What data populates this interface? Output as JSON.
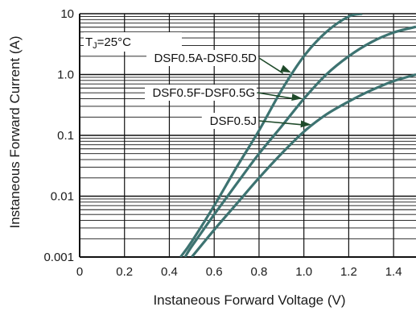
{
  "chart_data": {
    "type": "line",
    "title": "",
    "xlabel": "Instaneous Forward Voltage (V)",
    "ylabel": "Instaneous Forward Current (A)",
    "xlim": [
      0,
      1.5
    ],
    "ylim": [
      0.001,
      10
    ],
    "yscale": "log",
    "xticks": [
      "0",
      "0.2",
      "0.4",
      "0.6",
      "0.8",
      "1.0",
      "1.2",
      "1.4"
    ],
    "yticks": [
      "0.001",
      "0.01",
      "0.1",
      "1.0",
      "10"
    ],
    "grid": true,
    "condition": {
      "prefix": "T",
      "sub": "J",
      "suffix": "=25°C"
    },
    "series": [
      {
        "name": "DSF0.5A-DSF0.5D",
        "x": [
          0.45,
          0.5,
          0.6,
          0.7,
          0.8,
          0.9,
          1.0,
          1.1,
          1.2,
          1.26
        ],
        "y": [
          0.001,
          0.0018,
          0.007,
          0.03,
          0.12,
          0.55,
          2.0,
          5.0,
          9.0,
          10
        ]
      },
      {
        "name": "DSF0.5F-DSF0.5G",
        "x": [
          0.47,
          0.5,
          0.6,
          0.7,
          0.8,
          0.9,
          1.0,
          1.1,
          1.2,
          1.3,
          1.4,
          1.5
        ],
        "y": [
          0.001,
          0.0015,
          0.005,
          0.016,
          0.05,
          0.14,
          0.4,
          1.0,
          2.0,
          3.4,
          4.9,
          6.1
        ]
      },
      {
        "name": "DSF0.5J",
        "x": [
          0.5,
          0.6,
          0.7,
          0.8,
          0.9,
          1.0,
          1.1,
          1.2,
          1.3,
          1.4,
          1.5
        ],
        "y": [
          0.001,
          0.0028,
          0.0075,
          0.02,
          0.05,
          0.115,
          0.22,
          0.36,
          0.55,
          0.78,
          1.0
        ]
      }
    ],
    "annotations": [
      {
        "text": "DSF0.5A-DSF0.5D",
        "series": 0,
        "arrow_to_x": 0.95
      },
      {
        "text": "DSF0.5F-DSF0.5G",
        "series": 1,
        "arrow_to_x": 1.0
      },
      {
        "text": "DSF0.5J",
        "series": 2,
        "arrow_to_x": 1.04
      }
    ],
    "colors": {
      "curve": "#3d7371",
      "grid": "#111111",
      "arrow": "#1f4a2a"
    }
  }
}
